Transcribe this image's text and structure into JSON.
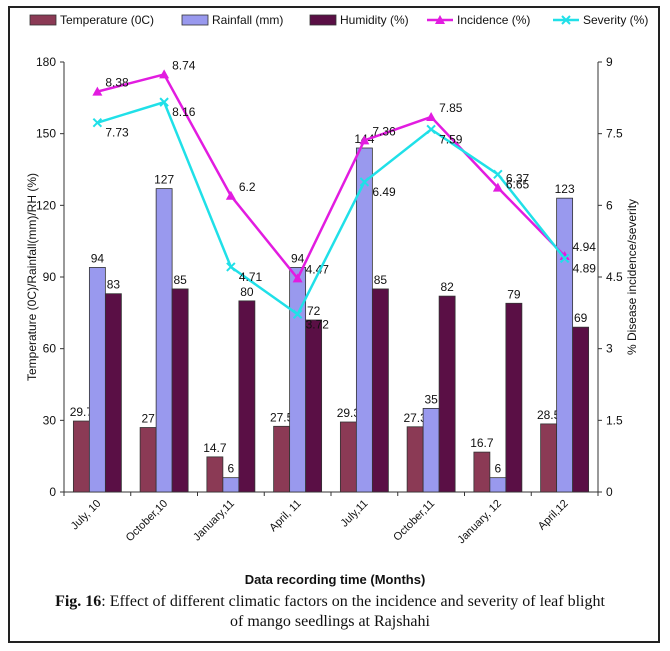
{
  "chart_data": {
    "type": "bar",
    "categories": [
      "July, 10",
      "October,10",
      "January,11",
      "April, 11",
      "July,11",
      "October,11",
      "January, 12",
      "April,12"
    ],
    "series": [
      {
        "name": "Temperature (0C)",
        "kind": "bar",
        "axis": "left",
        "color": "#8B3A55",
        "values": [
          29.7,
          27,
          14.7,
          27.5,
          29.3,
          27.3,
          16.7,
          28.5
        ],
        "labels": [
          "29.7",
          "27",
          "14.7",
          "27.5",
          "29.3",
          "27.3",
          "16.7",
          "28.5"
        ]
      },
      {
        "name": "Rainfall (mm)",
        "kind": "bar",
        "axis": "left",
        "color": "#9999EE",
        "values": [
          94,
          127,
          6,
          94,
          144,
          35,
          6,
          123
        ],
        "labels": [
          "94",
          "127",
          "6",
          "94",
          "144",
          "35",
          "6",
          "123"
        ]
      },
      {
        "name": "Humidity (%)",
        "kind": "bar",
        "axis": "left",
        "color": "#5A0F45",
        "values": [
          83,
          85,
          80,
          72,
          85,
          82,
          79,
          69
        ],
        "labels": [
          "83",
          "85",
          "80",
          "72",
          "85",
          "82",
          "79",
          "69"
        ]
      },
      {
        "name": "Incidence (%)",
        "kind": "line",
        "axis": "right",
        "color": "#E21CE0",
        "marker": "triangle",
        "values": [
          8.38,
          8.74,
          6.2,
          4.47,
          7.36,
          7.85,
          6.37,
          4.94
        ],
        "labels": [
          "8.38",
          "8.74",
          "6.2",
          "4.47",
          "7.36",
          "7.85",
          "6.37",
          "4.94"
        ]
      },
      {
        "name": "Severity (%)",
        "kind": "line",
        "axis": "right",
        "color": "#20E0E8",
        "marker": "x",
        "values": [
          7.73,
          8.16,
          4.71,
          3.72,
          6.49,
          7.59,
          6.65,
          4.89
        ],
        "labels": [
          "7.73",
          "8.16",
          "4.71",
          "3.72",
          "6.49",
          "7.59",
          "6.65",
          "4.89"
        ]
      }
    ],
    "ylabel": "Temperature (0C)/Rainfall(mm)/RH (%)",
    "ylabel_right": "% Disease incidence/severity",
    "xlabel": "Data recording time (Months)",
    "ylim": [
      0,
      180
    ],
    "yticks": [
      "0",
      "30",
      "60",
      "90",
      "120",
      "150",
      "180"
    ],
    "ylim_right": [
      0,
      9
    ],
    "yticks_right": [
      "0",
      "1.5",
      "3",
      "4.5",
      "6",
      "7.5",
      "9"
    ],
    "legend_position": "top",
    "grid": false
  },
  "caption": {
    "label": "Fig. 16",
    "text": ": Effect of different climatic factors on the incidence and severity of leaf blight of mango seedlings at Rajshahi"
  }
}
